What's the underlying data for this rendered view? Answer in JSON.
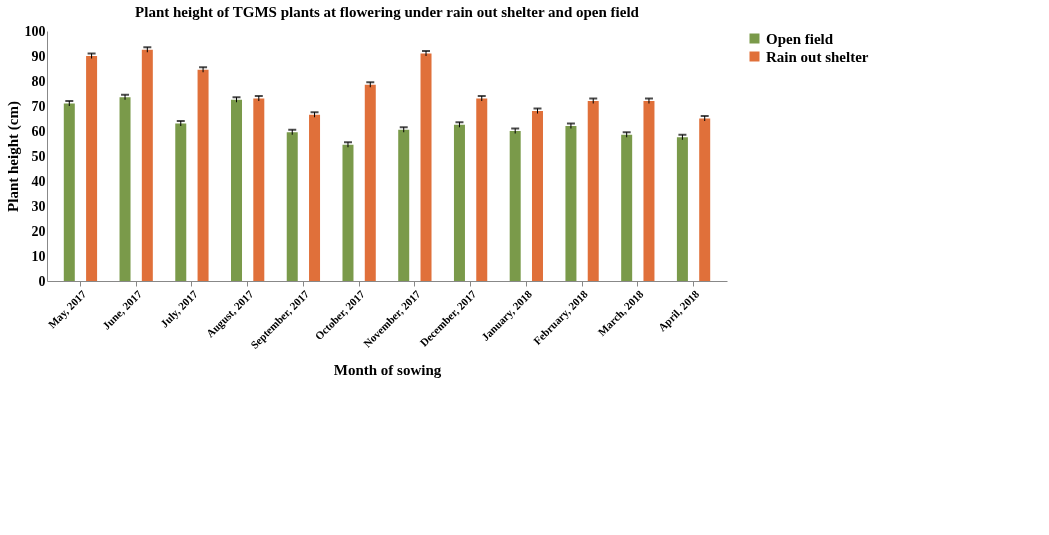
{
  "chart_data": {
    "type": "bar",
    "title": "Plant height of TGMS plants at flowering under rain out shelter and open field",
    "xlabel": "Month of sowing",
    "ylabel": "Plant height (cm)",
    "categories": [
      "May, 2017",
      "June, 2017",
      "July, 2017",
      "August, 2017",
      "September, 2017",
      "October, 2017",
      "November, 2017",
      "December, 2017",
      "January, 2018",
      "February, 2018",
      "March, 2018",
      "April, 2018"
    ],
    "series": [
      {
        "name": "Open field",
        "color": "#7a9a4a",
        "values": [
          71,
          73.5,
          63,
          72.5,
          59.5,
          54.5,
          60.5,
          62.5,
          60,
          62,
          58.5,
          57.5
        ],
        "errors": [
          1,
          1,
          1,
          1,
          1,
          1,
          1,
          1,
          1,
          1,
          1,
          1
        ]
      },
      {
        "name": "Rain out shelter",
        "color": "#e0703a",
        "values": [
          90,
          92.5,
          84.5,
          73,
          66.5,
          78.5,
          91,
          73,
          68,
          72,
          72,
          65
        ],
        "errors": [
          1,
          1,
          1,
          1,
          1,
          1,
          1,
          1,
          1,
          1,
          1,
          1
        ]
      }
    ],
    "ylim": [
      0,
      100
    ],
    "yticks": [
      0,
      10,
      20,
      30,
      40,
      50,
      60,
      70,
      80,
      90,
      100
    ],
    "grid": false,
    "legend": "right"
  }
}
